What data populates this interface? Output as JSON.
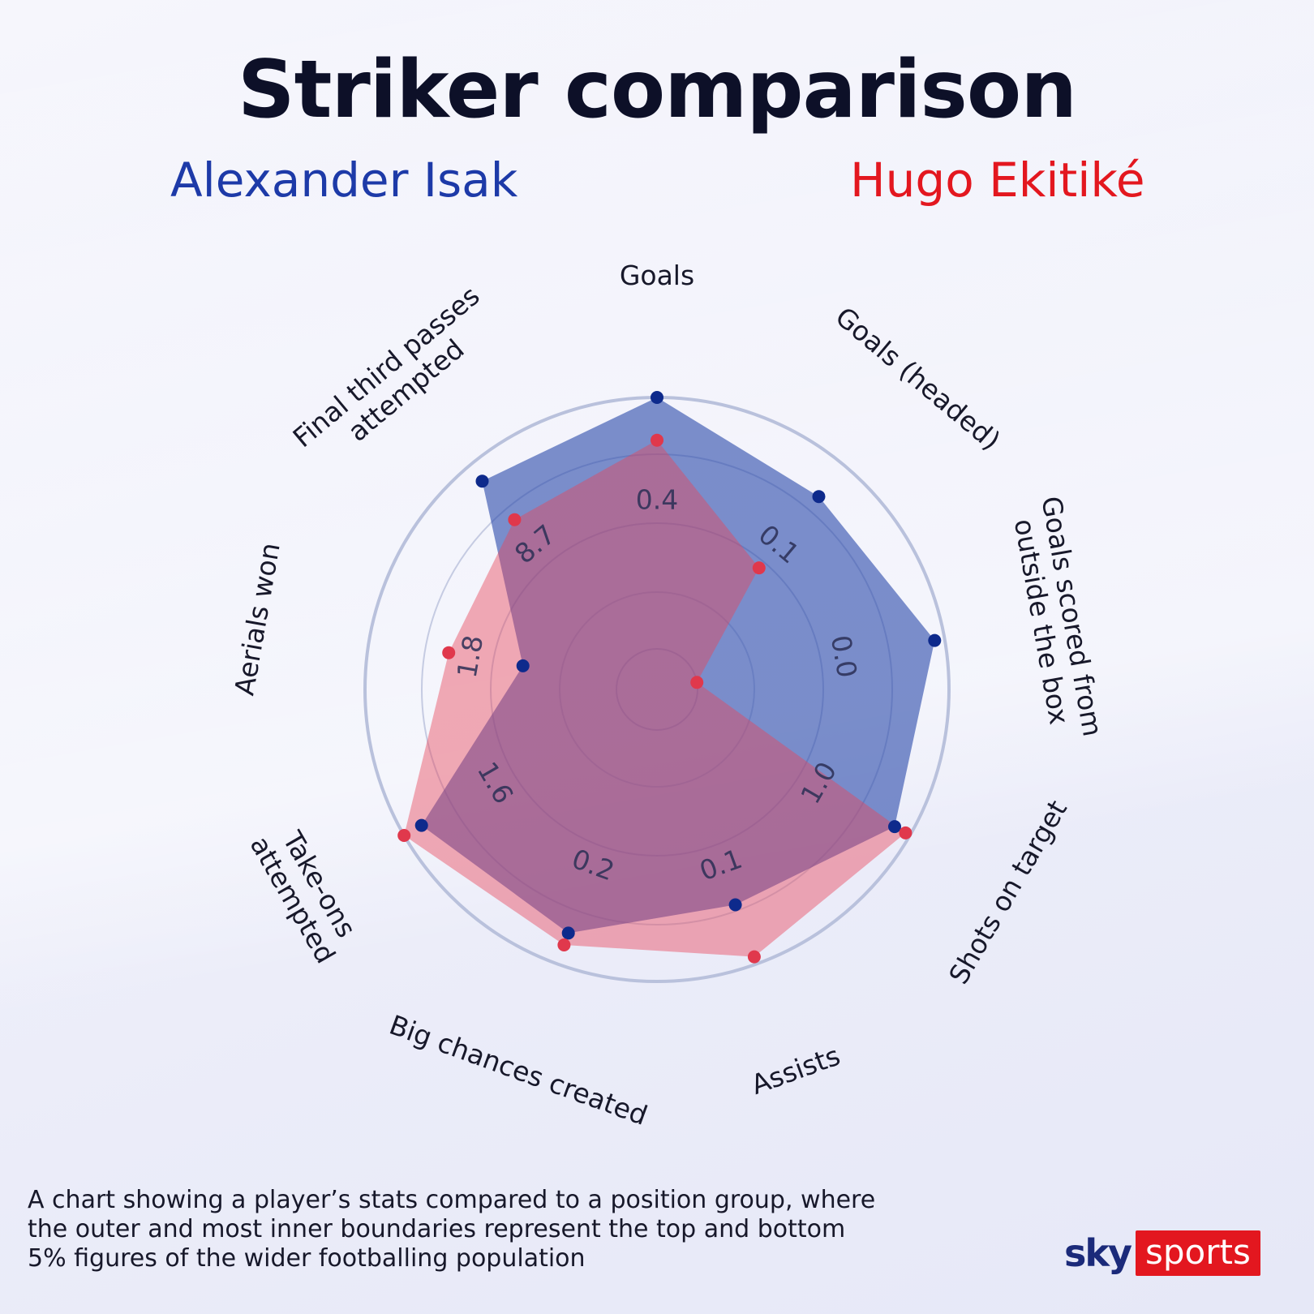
{
  "title": "Striker comparison",
  "players": {
    "a": {
      "name": "Alexander Isak",
      "color": "#1d3aa8"
    },
    "b": {
      "name": "Hugo Ekitiké",
      "color": "#e3171f"
    }
  },
  "caption": "A chart showing a player’s stats compared to a position group,  where the outer and most inner boundaries represent the top  and bottom 5% figures of the wider footballing population",
  "logo": {
    "sky": "sky",
    "sports": "sports"
  },
  "chart_data": {
    "type": "radar",
    "scale": "percentile",
    "range": [
      0,
      100
    ],
    "axes": [
      "Goals",
      "Goals (headed)",
      "Goals scored from outside the box",
      "Shots on target",
      "Assists",
      "Big chances created",
      "Take-ons attempted",
      "Aerials won",
      "Final third passes attempted"
    ],
    "series": [
      {
        "name": "Alexander Isak",
        "color": "#1d3aa8",
        "values": [
          100,
          84,
          96,
          93,
          75,
          87,
          92,
          38,
          92
        ]
      },
      {
        "name": "Hugo Ekitiké",
        "color": "#e3171f",
        "values": [
          83,
          47,
          0,
          98,
          97,
          92,
          100,
          68,
          72
        ]
      }
    ],
    "axis_value_labels": [
      {
        "axis": "Goals",
        "text": "0.4"
      },
      {
        "axis": "Goals (headed)",
        "text": "0.1"
      },
      {
        "axis": "Goals scored from outside the box",
        "text": "0.0"
      },
      {
        "axis": "Shots on target",
        "text": "1.0"
      },
      {
        "axis": "Assists",
        "text": "0.1"
      },
      {
        "axis": "Big chances created",
        "text": "0.2"
      },
      {
        "axis": "Take-ons attempted",
        "text": "1.6"
      },
      {
        "axis": "Aerials won",
        "text": "1.8"
      },
      {
        "axis": "Final third passes attempted",
        "text": "8.7"
      }
    ]
  }
}
